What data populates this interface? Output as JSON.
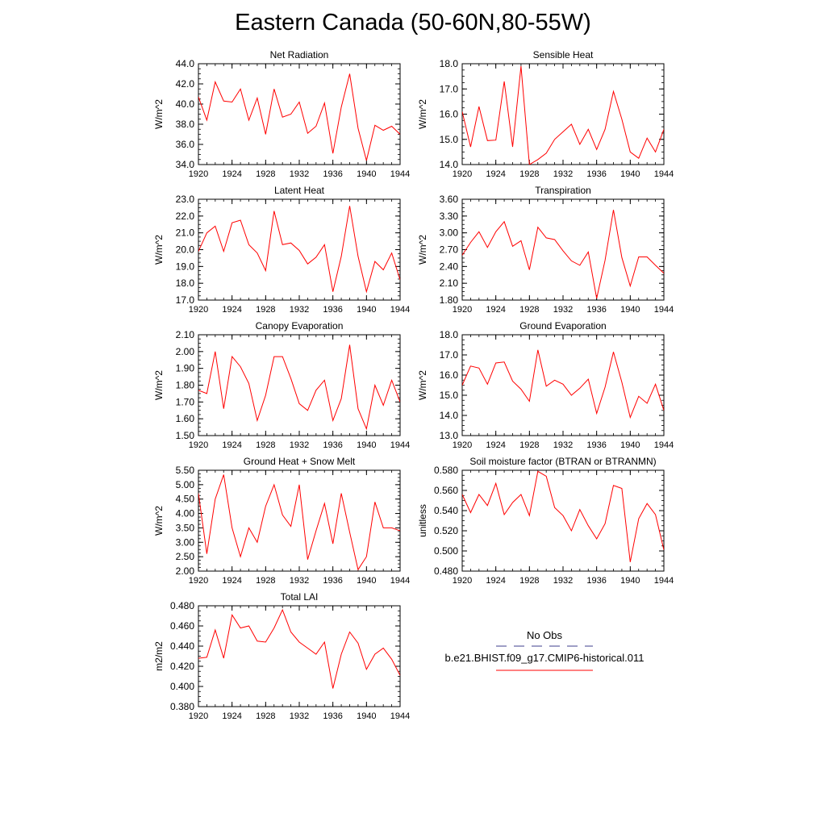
{
  "figure": {
    "title": "Eastern Canada (50-60N,80-55W)"
  },
  "legend": {
    "obs_label": "No Obs",
    "obs_color": "#3c3c8c",
    "model_label": "b.e21.BHIST.f09_g17.CMIP6-historical.011",
    "model_color": "#ff0000"
  },
  "chart_data": [
    {
      "type": "line",
      "title": "Net Radiation",
      "ylabel": "W/m^2",
      "ylim": [
        34.0,
        44.0
      ],
      "yticks": [
        "34.0",
        "36.0",
        "38.0",
        "40.0",
        "42.0",
        "44.0"
      ],
      "xlim": [
        1920,
        1944
      ],
      "xticks": [
        "1920",
        "1924",
        "1928",
        "1932",
        "1936",
        "1940",
        "1944"
      ],
      "x": [
        1920,
        1921,
        1922,
        1923,
        1924,
        1925,
        1926,
        1927,
        1928,
        1929,
        1930,
        1931,
        1932,
        1933,
        1934,
        1935,
        1936,
        1937,
        1938,
        1939,
        1940,
        1941,
        1942,
        1943,
        1944
      ],
      "series": [
        {
          "values": [
            40.7,
            38.4,
            42.2,
            40.3,
            40.2,
            41.5,
            38.4,
            40.6,
            37.0,
            41.5,
            38.7,
            39.0,
            40.2,
            37.1,
            37.8,
            40.1,
            35.1,
            39.7,
            43.0,
            37.6,
            34.4,
            37.9,
            37.4,
            37.8,
            37.0
          ]
        }
      ]
    },
    {
      "type": "line",
      "title": "Sensible Heat",
      "ylabel": "W/m^2",
      "ylim": [
        14.0,
        18.0
      ],
      "yticks": [
        "14.0",
        "15.0",
        "16.0",
        "17.0",
        "18.0"
      ],
      "xlim": [
        1920,
        1944
      ],
      "xticks": [
        "1920",
        "1924",
        "1928",
        "1932",
        "1936",
        "1940",
        "1944"
      ],
      "x": [
        1920,
        1921,
        1922,
        1923,
        1924,
        1925,
        1926,
        1927,
        1928,
        1929,
        1930,
        1931,
        1932,
        1933,
        1934,
        1935,
        1936,
        1937,
        1938,
        1939,
        1940,
        1941,
        1942,
        1943,
        1944
      ],
      "series": [
        {
          "values": [
            16.1,
            14.7,
            16.3,
            14.95,
            14.97,
            17.3,
            14.7,
            17.9,
            14.0,
            14.2,
            14.45,
            15.0,
            15.3,
            15.6,
            14.8,
            15.4,
            14.6,
            15.4,
            16.9,
            15.8,
            14.5,
            14.25,
            15.05,
            14.5,
            15.4
          ]
        }
      ]
    },
    {
      "type": "line",
      "title": "Latent Heat",
      "ylabel": "W/m^2",
      "ylim": [
        17.0,
        23.0
      ],
      "yticks": [
        "17.0",
        "18.0",
        "19.0",
        "20.0",
        "21.0",
        "22.0",
        "23.0"
      ],
      "xlim": [
        1920,
        1944
      ],
      "xticks": [
        "1920",
        "1924",
        "1928",
        "1932",
        "1936",
        "1940",
        "1944"
      ],
      "x": [
        1920,
        1921,
        1922,
        1923,
        1924,
        1925,
        1926,
        1927,
        1928,
        1929,
        1930,
        1931,
        1932,
        1933,
        1934,
        1935,
        1936,
        1937,
        1938,
        1939,
        1940,
        1941,
        1942,
        1943,
        1944
      ],
      "series": [
        {
          "values": [
            19.9,
            21.0,
            21.4,
            19.9,
            21.6,
            21.75,
            20.3,
            19.8,
            18.75,
            22.3,
            20.3,
            20.4,
            19.95,
            19.15,
            19.55,
            20.3,
            17.5,
            19.6,
            22.6,
            19.6,
            17.5,
            19.3,
            18.8,
            19.8,
            18.2
          ]
        }
      ]
    },
    {
      "type": "line",
      "title": "Transpiration",
      "ylabel": "W/m^2",
      "ylim": [
        1.8,
        3.6
      ],
      "yticks": [
        "1.80",
        "2.10",
        "2.40",
        "2.70",
        "3.00",
        "3.30",
        "3.60"
      ],
      "xlim": [
        1920,
        1944
      ],
      "xticks": [
        "1920",
        "1924",
        "1928",
        "1932",
        "1936",
        "1940",
        "1944"
      ],
      "x": [
        1920,
        1921,
        1922,
        1923,
        1924,
        1925,
        1926,
        1927,
        1928,
        1929,
        1930,
        1931,
        1932,
        1933,
        1934,
        1935,
        1936,
        1937,
        1938,
        1939,
        1940,
        1941,
        1942,
        1943,
        1944
      ],
      "series": [
        {
          "values": [
            2.6,
            2.83,
            3.02,
            2.74,
            3.02,
            3.2,
            2.76,
            2.86,
            2.34,
            3.1,
            2.91,
            2.88,
            2.68,
            2.5,
            2.42,
            2.66,
            1.83,
            2.51,
            3.41,
            2.56,
            2.05,
            2.57,
            2.57,
            2.42,
            2.28
          ]
        }
      ]
    },
    {
      "type": "line",
      "title": "Canopy Evaporation",
      "ylabel": "W/m^2",
      "ylim": [
        1.5,
        2.1
      ],
      "yticks": [
        "1.50",
        "1.60",
        "1.70",
        "1.80",
        "1.90",
        "2.00",
        "2.10"
      ],
      "xlim": [
        1920,
        1944
      ],
      "xticks": [
        "1920",
        "1924",
        "1928",
        "1932",
        "1936",
        "1940",
        "1944"
      ],
      "x": [
        1920,
        1921,
        1922,
        1923,
        1924,
        1925,
        1926,
        1927,
        1928,
        1929,
        1930,
        1931,
        1932,
        1933,
        1934,
        1935,
        1936,
        1937,
        1938,
        1939,
        1940,
        1941,
        1942,
        1943,
        1944
      ],
      "series": [
        {
          "values": [
            1.77,
            1.75,
            2.0,
            1.66,
            1.97,
            1.91,
            1.81,
            1.59,
            1.74,
            1.97,
            1.97,
            1.84,
            1.69,
            1.65,
            1.77,
            1.83,
            1.59,
            1.72,
            2.04,
            1.66,
            1.54,
            1.8,
            1.68,
            1.83,
            1.7
          ]
        }
      ]
    },
    {
      "type": "line",
      "title": "Ground Evaporation",
      "ylabel": "W/m^2",
      "ylim": [
        13.0,
        18.0
      ],
      "yticks": [
        "13.0",
        "14.0",
        "15.0",
        "16.0",
        "17.0",
        "18.0"
      ],
      "xlim": [
        1920,
        1944
      ],
      "xticks": [
        "1920",
        "1924",
        "1928",
        "1932",
        "1936",
        "1940",
        "1944"
      ],
      "x": [
        1920,
        1921,
        1922,
        1923,
        1924,
        1925,
        1926,
        1927,
        1928,
        1929,
        1930,
        1931,
        1932,
        1933,
        1934,
        1935,
        1936,
        1937,
        1938,
        1939,
        1940,
        1941,
        1942,
        1943,
        1944
      ],
      "series": [
        {
          "values": [
            15.5,
            16.45,
            16.35,
            15.55,
            16.6,
            16.65,
            15.7,
            15.3,
            14.7,
            17.25,
            15.45,
            15.75,
            15.55,
            15.0,
            15.35,
            15.8,
            14.1,
            15.4,
            17.15,
            15.65,
            13.9,
            14.95,
            14.6,
            15.55,
            14.25
          ]
        }
      ]
    },
    {
      "type": "line",
      "title": "Ground Heat + Snow Melt",
      "ylabel": "W/m^2",
      "ylim": [
        2.0,
        5.5
      ],
      "yticks": [
        "2.00",
        "2.50",
        "3.00",
        "3.50",
        "4.00",
        "4.50",
        "5.00",
        "5.50"
      ],
      "xlim": [
        1920,
        1944
      ],
      "xticks": [
        "1920",
        "1924",
        "1928",
        "1932",
        "1936",
        "1940",
        "1944"
      ],
      "x": [
        1920,
        1921,
        1922,
        1923,
        1924,
        1925,
        1926,
        1927,
        1928,
        1929,
        1930,
        1931,
        1932,
        1933,
        1934,
        1935,
        1936,
        1937,
        1938,
        1939,
        1940,
        1941,
        1942,
        1943,
        1944
      ],
      "series": [
        {
          "values": [
            4.7,
            2.6,
            4.5,
            5.35,
            3.5,
            2.5,
            3.5,
            3.0,
            4.25,
            5.0,
            3.95,
            3.55,
            5.0,
            2.4,
            3.4,
            4.35,
            2.95,
            4.7,
            3.35,
            2.05,
            2.5,
            4.4,
            3.5,
            3.5,
            3.4
          ]
        }
      ]
    },
    {
      "type": "line",
      "title": "Soil moisture factor (BTRAN or BTRANMN)",
      "ylabel": "unitless",
      "ylim": [
        0.48,
        0.58
      ],
      "yticks": [
        "0.480",
        "0.500",
        "0.520",
        "0.540",
        "0.560",
        "0.580"
      ],
      "xlim": [
        1920,
        1944
      ],
      "xticks": [
        "1920",
        "1924",
        "1928",
        "1932",
        "1936",
        "1940",
        "1944"
      ],
      "x": [
        1920,
        1921,
        1922,
        1923,
        1924,
        1925,
        1926,
        1927,
        1928,
        1929,
        1930,
        1931,
        1932,
        1933,
        1934,
        1935,
        1936,
        1937,
        1938,
        1939,
        1940,
        1941,
        1942,
        1943,
        1944
      ],
      "series": [
        {
          "values": [
            0.556,
            0.538,
            0.556,
            0.545,
            0.567,
            0.536,
            0.548,
            0.556,
            0.535,
            0.579,
            0.574,
            0.543,
            0.535,
            0.52,
            0.541,
            0.525,
            0.512,
            0.527,
            0.565,
            0.562,
            0.489,
            0.532,
            0.547,
            0.536,
            0.501
          ]
        }
      ]
    },
    {
      "type": "line",
      "title": "Total LAI",
      "ylabel": "m2/m2",
      "ylim": [
        0.38,
        0.48
      ],
      "yticks": [
        "0.380",
        "0.400",
        "0.420",
        "0.440",
        "0.460",
        "0.480"
      ],
      "xlim": [
        1920,
        1944
      ],
      "xticks": [
        "1920",
        "1924",
        "1928",
        "1932",
        "1936",
        "1940",
        "1944"
      ],
      "x": [
        1920,
        1921,
        1922,
        1923,
        1924,
        1925,
        1926,
        1927,
        1928,
        1929,
        1930,
        1931,
        1932,
        1933,
        1934,
        1935,
        1936,
        1937,
        1938,
        1939,
        1940,
        1941,
        1942,
        1943,
        1944
      ],
      "series": [
        {
          "values": [
            0.428,
            0.429,
            0.456,
            0.428,
            0.471,
            0.458,
            0.46,
            0.445,
            0.444,
            0.458,
            0.476,
            0.454,
            0.444,
            0.438,
            0.432,
            0.444,
            0.398,
            0.432,
            0.454,
            0.443,
            0.417,
            0.432,
            0.438,
            0.427,
            0.411
          ]
        }
      ]
    }
  ]
}
